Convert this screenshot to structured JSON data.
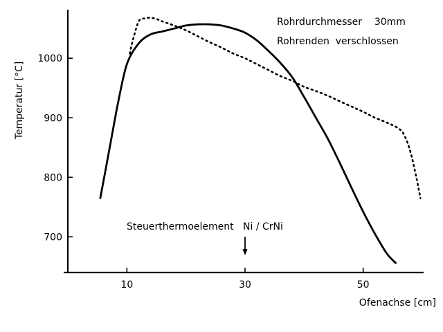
{
  "chart_data": {
    "type": "line",
    "xlabel": "Ofenachse [cm]",
    "ylabel": "Temperatur [°C]",
    "xlim": [
      0,
      60
    ],
    "ylim": [
      640,
      1070
    ],
    "x_ticks": [
      10,
      30,
      50
    ],
    "x_tick_labels": [
      "10",
      "30",
      "50"
    ],
    "y_ticks": [
      700,
      800,
      900,
      1000
    ],
    "y_tick_labels": [
      "700",
      "800",
      "900",
      "1000"
    ],
    "grid": false,
    "annotations": [
      {
        "text": "Rohrdurchmesser    30mm"
      },
      {
        "text": "Rohrenden  verschlossen"
      },
      {
        "text": "Steuerthermoelement   Ni / CrNi"
      }
    ],
    "marker": {
      "type": "arrow",
      "x": 30,
      "y_from": 700,
      "y_to": 670
    },
    "series": [
      {
        "style": "solid",
        "points": [
          [
            5.5,
            765
          ],
          [
            7,
            845
          ],
          [
            8.5,
            925
          ],
          [
            10,
            990
          ],
          [
            12,
            1025
          ],
          [
            14,
            1040
          ],
          [
            16,
            1045
          ],
          [
            18,
            1050
          ],
          [
            20,
            1055
          ],
          [
            22,
            1057
          ],
          [
            24,
            1057
          ],
          [
            26,
            1055
          ],
          [
            28,
            1050
          ],
          [
            30,
            1043
          ],
          [
            32,
            1030
          ],
          [
            34,
            1012
          ],
          [
            36,
            992
          ],
          [
            38,
            968
          ],
          [
            40,
            935
          ],
          [
            42,
            900
          ],
          [
            44,
            865
          ],
          [
            46,
            825
          ],
          [
            48,
            783
          ],
          [
            50,
            742
          ],
          [
            52,
            705
          ],
          [
            54,
            672
          ],
          [
            55.5,
            656
          ]
        ]
      },
      {
        "style": "dotted",
        "points": [
          [
            10.5,
            1008
          ],
          [
            11,
            1030
          ],
          [
            12,
            1062
          ],
          [
            13,
            1067
          ],
          [
            14,
            1068
          ],
          [
            15,
            1066
          ],
          [
            16,
            1062
          ],
          [
            18,
            1055
          ],
          [
            20,
            1047
          ],
          [
            22,
            1037
          ],
          [
            24,
            1027
          ],
          [
            26,
            1018
          ],
          [
            28,
            1008
          ],
          [
            30,
            1000
          ],
          [
            32,
            990
          ],
          [
            34,
            980
          ],
          [
            36,
            970
          ],
          [
            38,
            962
          ],
          [
            40,
            952
          ],
          [
            42,
            945
          ],
          [
            44,
            937
          ],
          [
            46,
            928
          ],
          [
            48,
            919
          ],
          [
            50,
            910
          ],
          [
            52,
            900
          ],
          [
            54,
            892
          ],
          [
            56,
            882
          ],
          [
            57,
            870
          ],
          [
            58,
            843
          ],
          [
            59,
            800
          ],
          [
            59.7,
            765
          ]
        ]
      }
    ]
  }
}
